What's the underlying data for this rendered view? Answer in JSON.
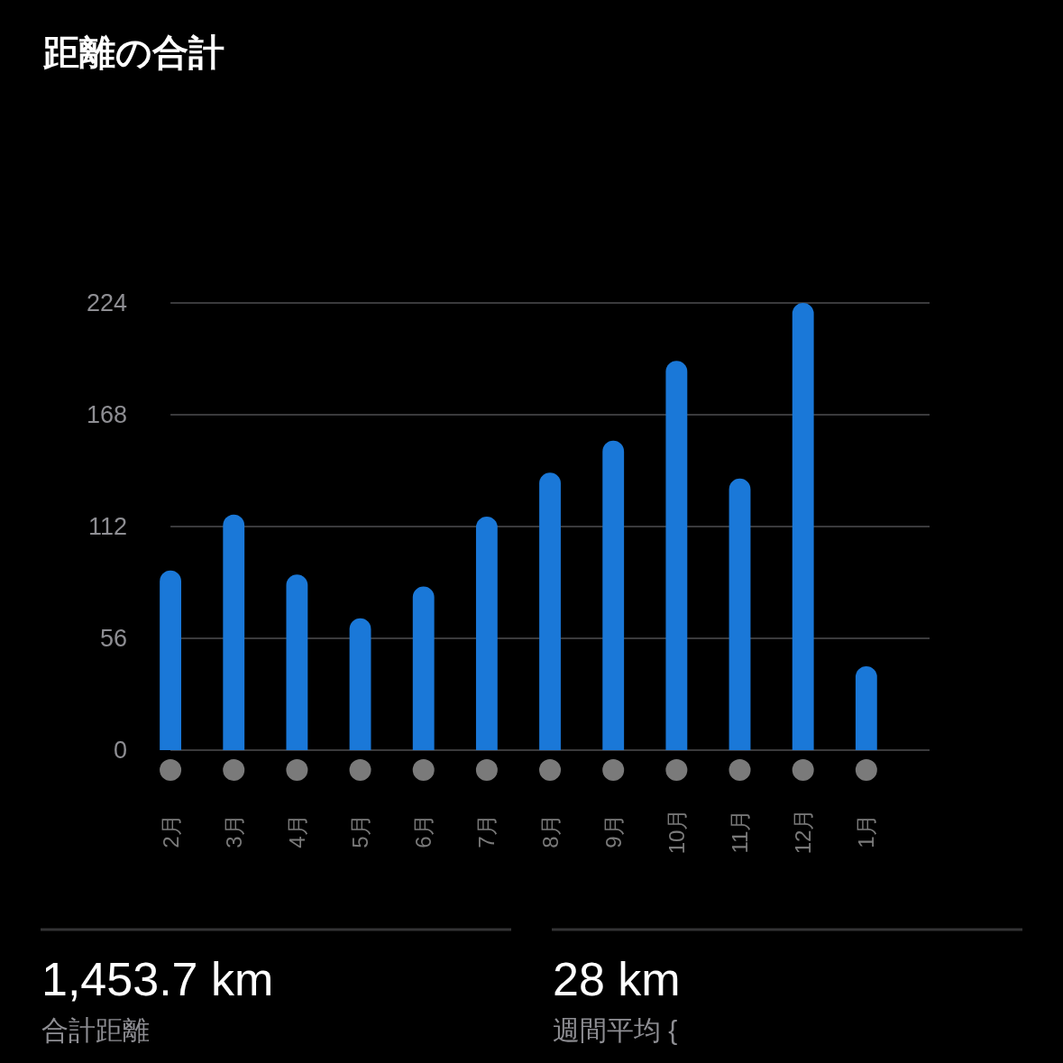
{
  "chart_data": {
    "type": "bar",
    "title": "距離の合計",
    "categories": [
      "2月",
      "3月",
      "4月",
      "5月",
      "6月",
      "7月",
      "8月",
      "9月",
      "10月",
      "11月",
      "12月",
      "1月"
    ],
    "values": [
      90,
      118,
      88,
      66,
      82,
      117,
      139,
      155,
      195,
      136,
      224,
      42
    ],
    "color": "#1a78d8",
    "ylim": [
      0,
      224
    ],
    "yticks": [
      0,
      56,
      112,
      168,
      224
    ],
    "grid": "y",
    "annotations": [
      "1,453.7 km",
      "合計距離",
      "28 km",
      "週間平均 {"
    ]
  }
}
